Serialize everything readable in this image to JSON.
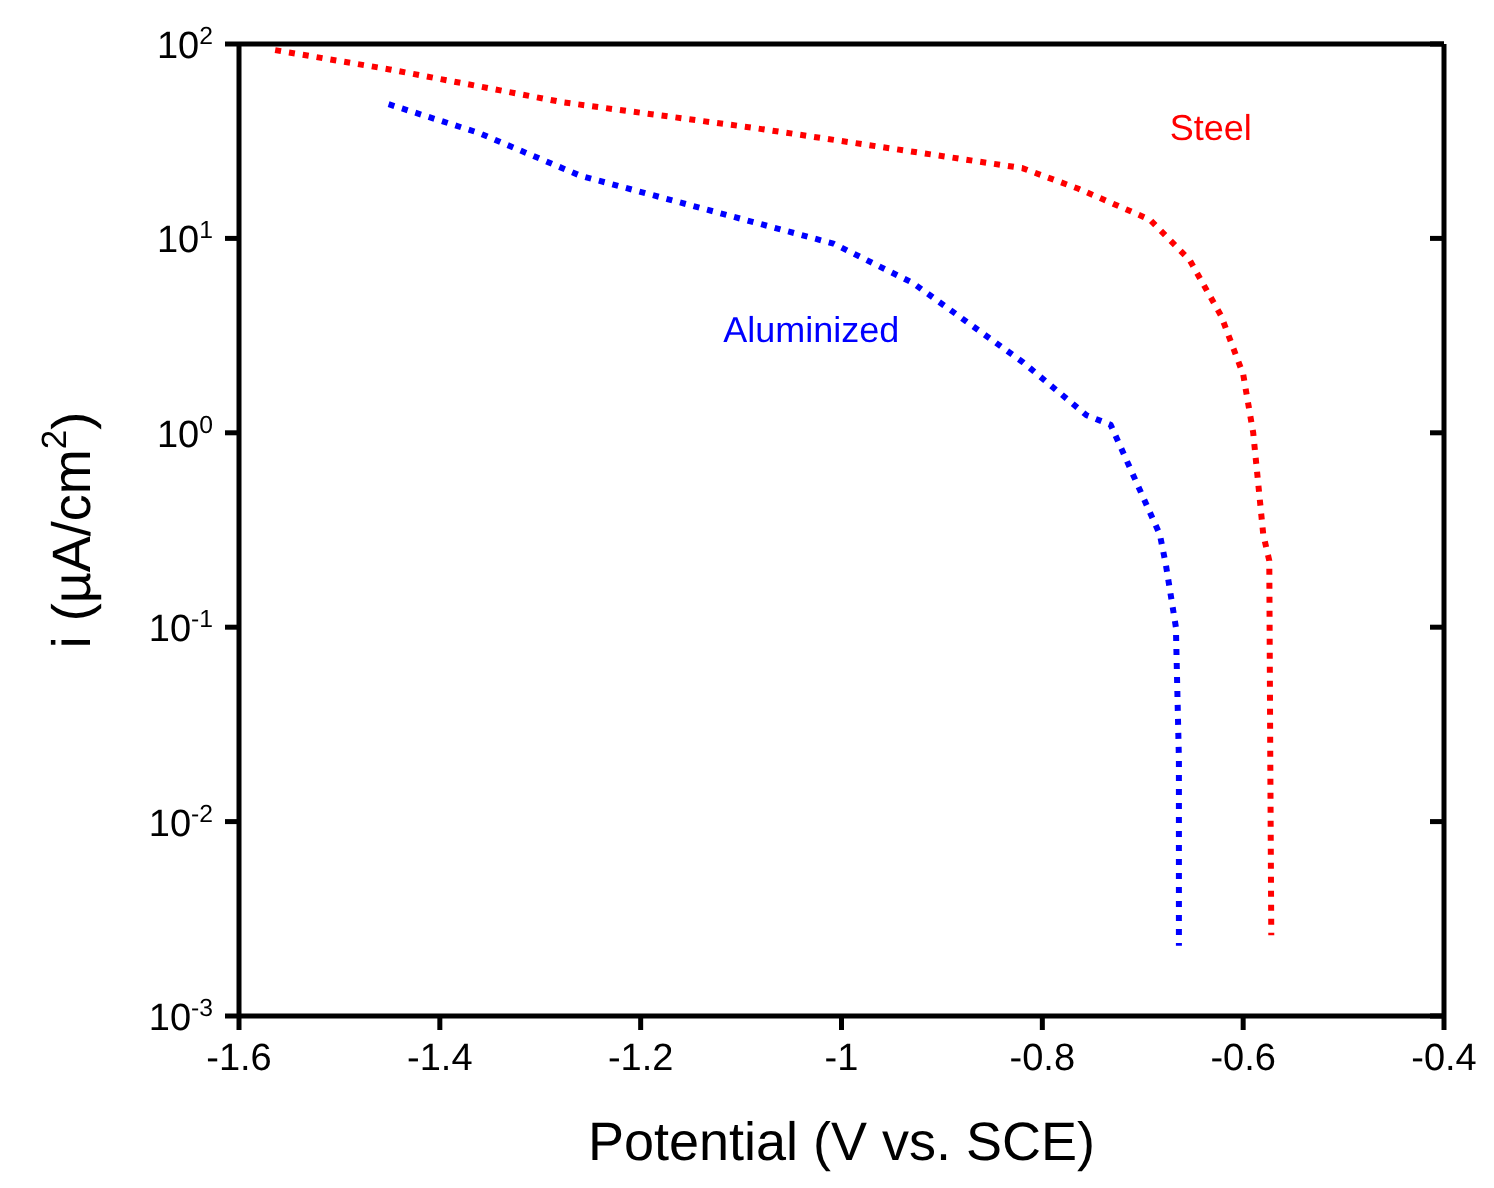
{
  "chart_data": {
    "type": "line",
    "xlabel": "Potential (V vs. SCE)",
    "ylabel": "i (µA/cm$^{2}$)",
    "log": "y",
    "xlim": [
      -1.6,
      -0.4
    ],
    "xticks": [
      -1.6,
      -1.4,
      -1.2,
      -1.0,
      -0.8,
      -0.6,
      -0.4
    ],
    "ylim": [
      0.001,
      100
    ],
    "yticks": [
      {
        "value": 0.001,
        "label": "10$^{-3}$"
      },
      {
        "value": 0.01,
        "label": "10$^{-2}$"
      },
      {
        "value": 0.1,
        "label": "10$^{-1}$"
      },
      {
        "value": 1,
        "label": "10$^{0}$"
      },
      {
        "value": 10,
        "label": "10$^{1}$"
      },
      {
        "value": 100,
        "label": "10$^{2}$"
      }
    ],
    "marker": "none",
    "line_style": "dotted",
    "series": [
      {
        "name": "Steel",
        "color": "#ff0000",
        "x": [
          -1.564,
          -1.45,
          -1.276,
          -1.087,
          -0.82,
          -0.764,
          -0.693,
          -0.653,
          -0.622,
          -0.6,
          -0.59,
          -0.58,
          -0.574,
          -0.573,
          -0.572
        ],
        "values": [
          93,
          74,
          50,
          37,
          23,
          18,
          12.5,
          7.7,
          4,
          2,
          1,
          0.3,
          0.22,
          0.021,
          0.0026
        ]
      },
      {
        "name": "Aluminized",
        "color": "#0000ff",
        "x": [
          -1.451,
          -1.362,
          -1.26,
          -1.126,
          -1.008,
          -0.929,
          -0.819,
          -0.756,
          -0.732,
          -0.683,
          -0.677,
          -0.667,
          -0.664,
          -0.664
        ],
        "values": [
          49,
          35,
          21,
          13.7,
          9.4,
          5.9,
          2.3,
          1.23,
          1.1,
          0.3,
          0.21,
          0.1,
          0.021,
          0.0023
        ]
      }
    ]
  }
}
